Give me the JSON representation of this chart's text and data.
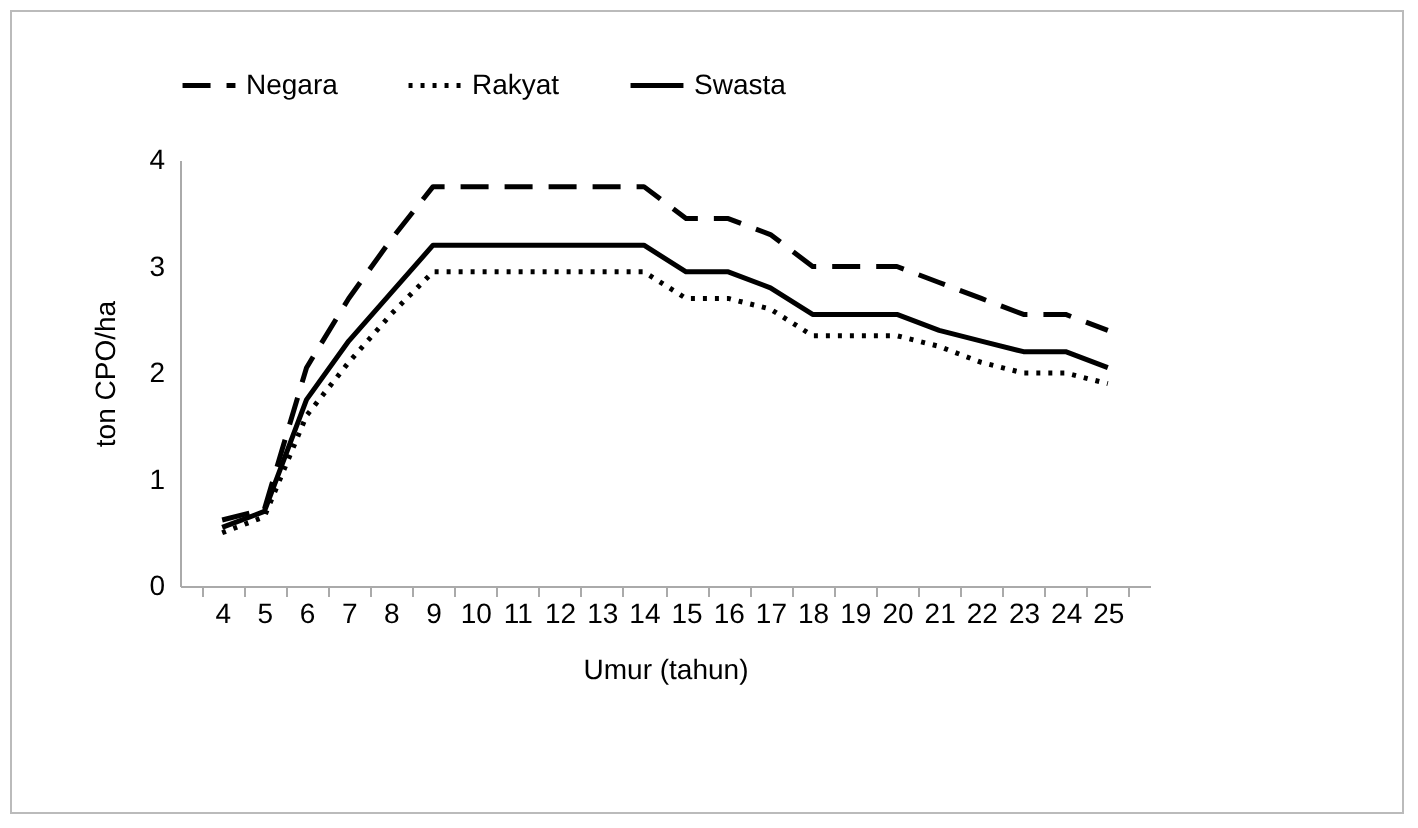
{
  "chart_data": {
    "type": "line",
    "xlabel": "Umur (tahun)",
    "ylabel": "ton CPO/ha",
    "categories": [
      "4",
      "5",
      "6",
      "7",
      "8",
      "9",
      "10",
      "11",
      "12",
      "13",
      "14",
      "15",
      "16",
      "17",
      "18",
      "19",
      "20",
      "21",
      "22",
      "23",
      "24",
      "25"
    ],
    "series": [
      {
        "name": "Negara",
        "color": "#000000",
        "line_style": "dashed",
        "values": [
          0.62,
          0.72,
          2.05,
          2.7,
          3.25,
          3.75,
          3.75,
          3.75,
          3.75,
          3.75,
          3.75,
          3.45,
          3.45,
          3.3,
          3.0,
          3.0,
          3.0,
          2.85,
          2.7,
          2.55,
          2.55,
          2.4
        ]
      },
      {
        "name": "Rakyat",
        "color": "#000000",
        "line_style": "dotted",
        "values": [
          0.5,
          0.65,
          1.6,
          2.1,
          2.55,
          2.95,
          2.95,
          2.95,
          2.95,
          2.95,
          2.95,
          2.7,
          2.7,
          2.6,
          2.35,
          2.35,
          2.35,
          2.25,
          2.1,
          2.0,
          2.0,
          1.9
        ]
      },
      {
        "name": "Swasta",
        "color": "#000000",
        "line_style": "solid",
        "values": [
          0.55,
          0.7,
          1.75,
          2.3,
          2.75,
          3.2,
          3.2,
          3.2,
          3.2,
          3.2,
          3.2,
          2.95,
          2.95,
          2.8,
          2.55,
          2.55,
          2.55,
          2.4,
          2.3,
          2.2,
          2.2,
          2.05
        ]
      }
    ],
    "ylim": [
      0,
      4
    ],
    "yticks": [
      0,
      1,
      2,
      3,
      4
    ],
    "grid": false,
    "legend": "top",
    "marker": "none"
  }
}
